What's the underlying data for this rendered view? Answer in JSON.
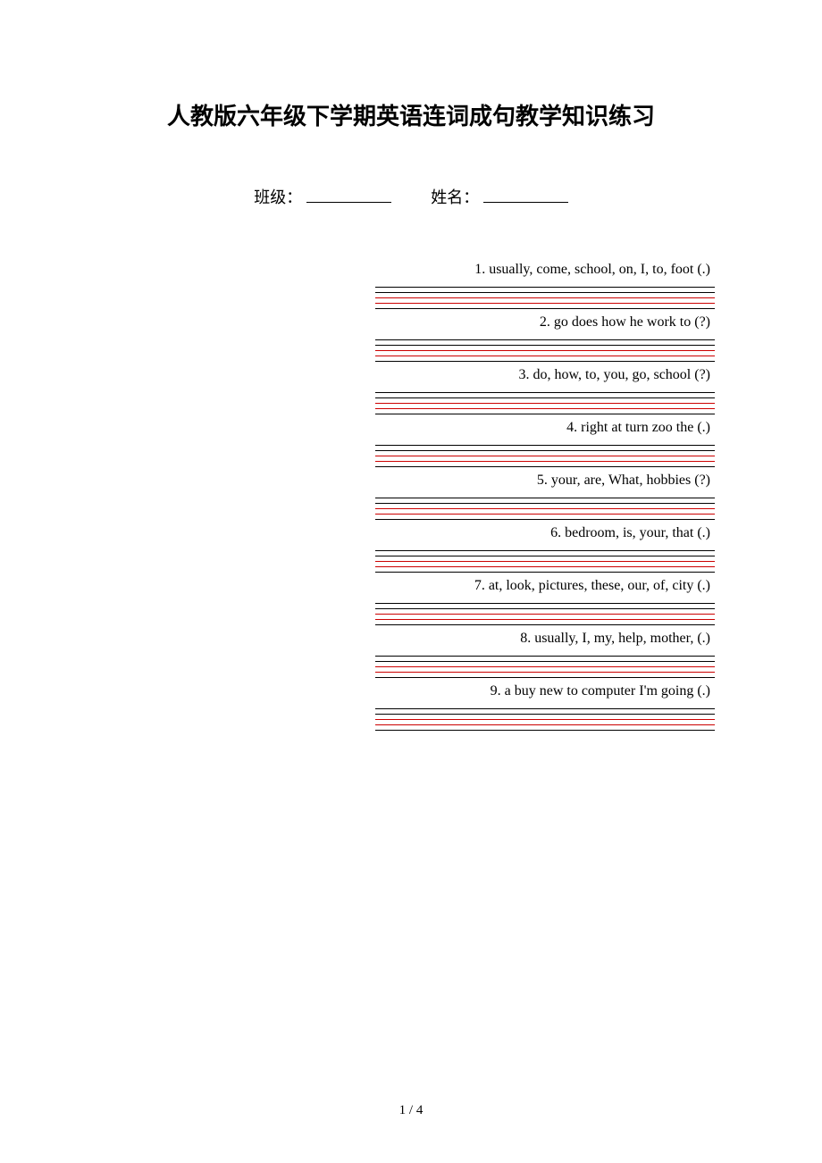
{
  "title": "人教版六年级下学期英语连词成句教学知识练习",
  "form": {
    "class_label": "班级：",
    "name_label": "姓名："
  },
  "questions": [
    {
      "text": "1. usually, come, school, on, I, to, foot (.)"
    },
    {
      "text": "2. go does how he work to  (?)"
    },
    {
      "text": "3. do, how, to, you, go, school (?)"
    },
    {
      "text": "4. right  at  turn  zoo  the (.)"
    },
    {
      "text": "5. your, are, What, hobbies (?)"
    },
    {
      "text": "6. bedroom, is, your, that (.)"
    },
    {
      "text": "7. at, look, pictures, these, our, of, city (.)"
    },
    {
      "text": "8. usually, I, my, help, mother, (.)"
    },
    {
      "text": "9. a buy new to computer I'm going (.)"
    }
  ],
  "line_colors": {
    "black": "#000000",
    "red": "#cc0000"
  },
  "line_pattern": [
    "black",
    "black",
    "red",
    "red",
    "black"
  ],
  "page_number": "1 / 4"
}
